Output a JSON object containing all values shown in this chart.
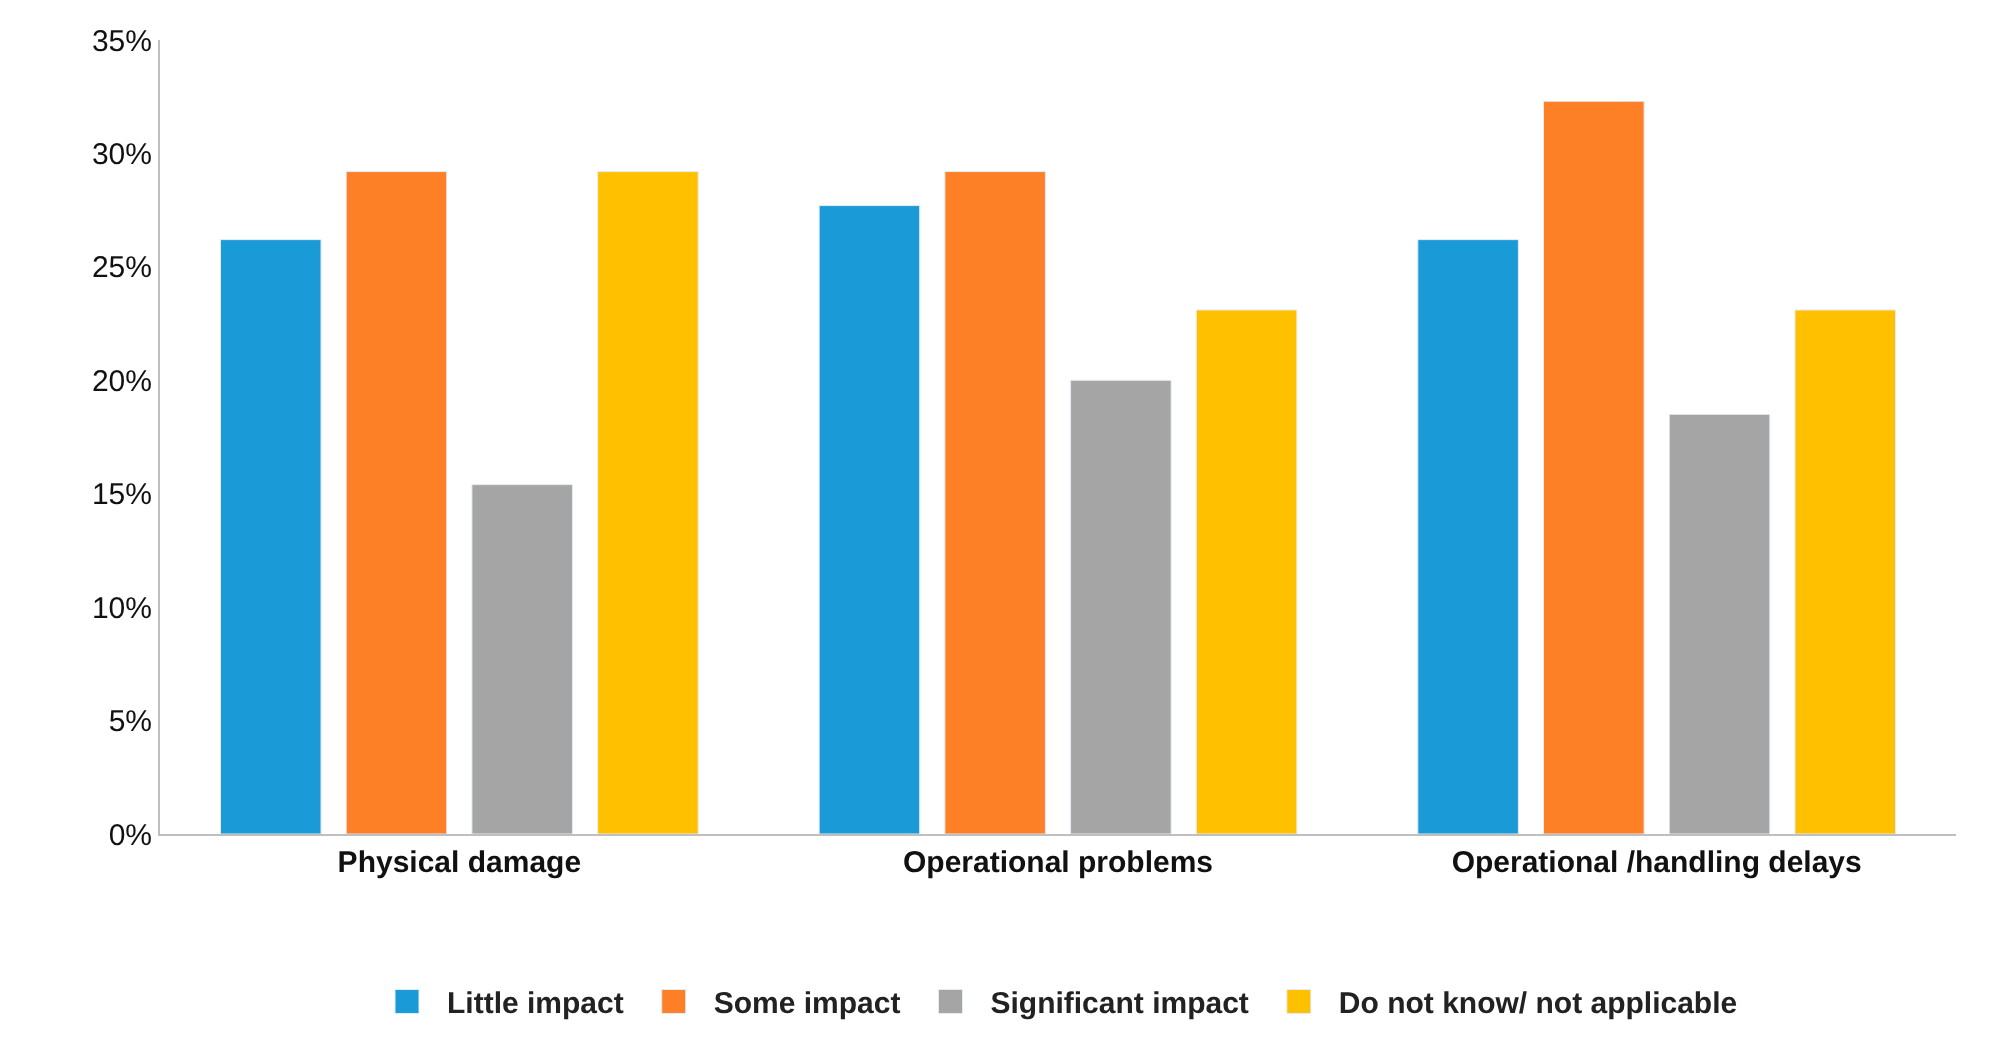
{
  "chart_data": {
    "type": "bar",
    "categories": [
      "Physical damage",
      "Operational problems",
      "Operational /handling delays"
    ],
    "series": [
      {
        "name": "Little impact",
        "color": "#1a9ad6",
        "values": [
          26.2,
          27.7,
          26.2
        ]
      },
      {
        "name": "Some impact",
        "color": "#fd7f26",
        "values": [
          29.2,
          29.2,
          32.3
        ]
      },
      {
        "name": "Significant impact",
        "color": "#a5a5a5",
        "values": [
          15.4,
          20.0,
          18.5
        ]
      },
      {
        "name": "Do not know/ not applicable",
        "color": "#ffc000",
        "values": [
          29.2,
          23.1,
          23.1
        ]
      }
    ],
    "ylim": [
      0,
      35
    ],
    "yticks": [
      {
        "value": 0,
        "label": "0%"
      },
      {
        "value": 5,
        "label": "5%"
      },
      {
        "value": 10,
        "label": "10%"
      },
      {
        "value": 15,
        "label": "15%"
      },
      {
        "value": 20,
        "label": "20%"
      },
      {
        "value": 25,
        "label": "25%"
      },
      {
        "value": 30,
        "label": "30%"
      },
      {
        "value": 35,
        "label": "35%"
      }
    ],
    "legend": "bottom"
  }
}
